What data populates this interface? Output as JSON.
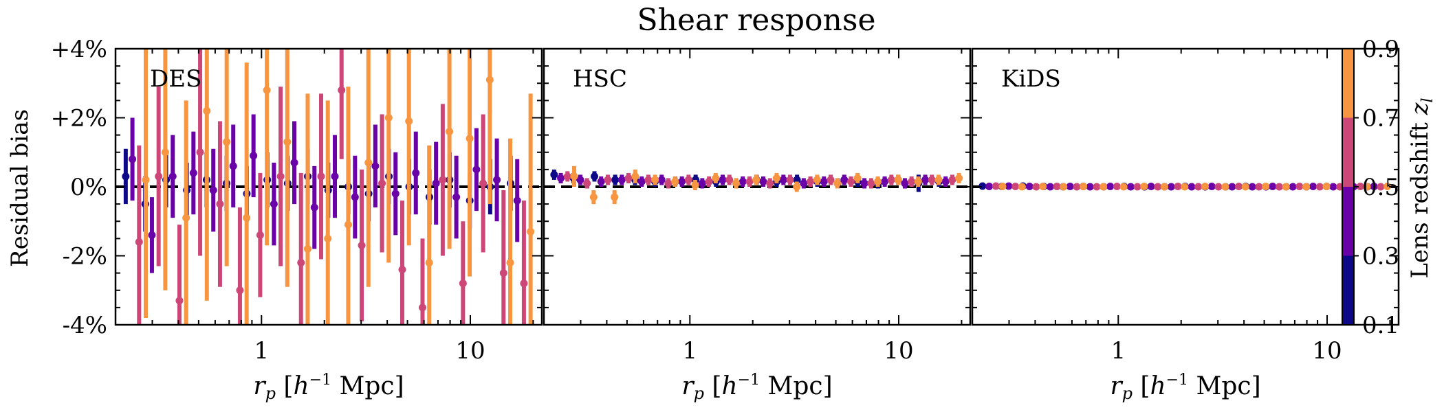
{
  "title": "Shear response",
  "ylabel": "Residual bias",
  "xlabel_var": "r",
  "xlabel_sub": "p",
  "xlabel_unit_open": " [",
  "xlabel_h": "h",
  "xlabel_exp": "−1",
  "xlabel_unit_close": " Mpc]",
  "colorbar": {
    "label_text": "Lens redshift ",
    "label_var": "z",
    "label_sub": "l",
    "bins": [
      {
        "lo": 0.1,
        "hi": 0.3,
        "color": "#0d0887"
      },
      {
        "lo": 0.3,
        "hi": 0.5,
        "color": "#6a00a8"
      },
      {
        "lo": 0.5,
        "hi": 0.7,
        "color": "#cc4778"
      },
      {
        "lo": 0.7,
        "hi": 0.9,
        "color": "#f89540"
      }
    ],
    "tick_labels": [
      "0.1",
      "0.3",
      "0.5",
      "0.7",
      "0.9"
    ]
  },
  "chart_data": [
    {
      "type": "scatter",
      "panel": "DES",
      "title": "Shear response",
      "xlabel": "r_p [h^-1 Mpc]",
      "ylabel": "Residual bias",
      "xscale": "log",
      "xlim": [
        0.2,
        22
      ],
      "ylim": [
        -4,
        4
      ],
      "x_ticks": [
        1,
        10
      ],
      "x_tick_labels": [
        "1",
        "10"
      ],
      "y_ticks": [
        4,
        2,
        0,
        -2,
        -4
      ],
      "y_tick_labels": [
        "+4%",
        "+2%",
        "0%",
        "-2%",
        "-4%"
      ],
      "reference_line": 0,
      "x": [
        0.25,
        0.31,
        0.39,
        0.49,
        0.61,
        0.76,
        0.95,
        1.19,
        1.49,
        1.86,
        2.33,
        2.91,
        3.64,
        4.55,
        5.69,
        7.11,
        8.89,
        11.1,
        13.9,
        17.4
      ],
      "series": [
        {
          "name": "0.1–0.3",
          "y": [
            0.3,
            -0.5,
            0.2,
            -0.1,
            0.2,
            0.1,
            -0.2,
            0.2,
            0.1,
            0.3,
            -0.1,
            0.0,
            -0.2,
            0.3,
            0.0,
            -0.3,
            0.2,
            -0.4,
            0.0,
            0.1
          ],
          "err": [
            0.8,
            0.8,
            0.8,
            0.8,
            0.8,
            0.8,
            0.8,
            0.8,
            0.8,
            0.8,
            0.8,
            0.8,
            0.8,
            0.8,
            0.8,
            0.8,
            0.8,
            0.8,
            0.8,
            0.8
          ]
        },
        {
          "name": "0.3–0.5",
          "y": [
            0.8,
            -1.4,
            0.3,
            0.4,
            -0.1,
            0.6,
            0.9,
            -0.5,
            0.7,
            -0.6,
            0.3,
            -0.3,
            0.6,
            -0.2,
            0.4,
            0.1,
            -0.3,
            0.5,
            0.2,
            -0.4
          ],
          "err": [
            1.2,
            1.1,
            1.2,
            1.2,
            1.2,
            1.2,
            1.2,
            1.2,
            1.2,
            1.2,
            1.2,
            1.2,
            1.2,
            1.2,
            1.2,
            1.2,
            1.2,
            1.2,
            1.2,
            1.2
          ]
        },
        {
          "name": "0.5–0.7",
          "y": [
            -1.6,
            0.3,
            -3.3,
            1.0,
            -0.5,
            -3.0,
            -1.4,
            0.3,
            -2.2,
            0.3,
            2.8,
            -1.7,
            0.1,
            -2.4,
            -3.5,
            0.2,
            -2.8,
            0.1,
            -2.5,
            -2.8
          ],
          "err": [
            2.8,
            2.6,
            2.2,
            3.0,
            2.4,
            2.4,
            1.8,
            2.6,
            2.6,
            2.4,
            2.0,
            2.2,
            2.0,
            2.0,
            2.0,
            2.2,
            1.8,
            2.0,
            2.4,
            2.4
          ]
        },
        {
          "name": "0.7–0.9",
          "y": [
            0.2,
            1.0,
            -0.9,
            2.2,
            1.3,
            -0.9,
            2.8,
            1.3,
            -1.8,
            -1.5,
            -1.1,
            0.7,
            2.0,
            1.9,
            -2.2,
            1.6,
            1.4,
            3.1,
            -2.2,
            -1.3
          ],
          "err": [
            4.0,
            4.0,
            3.4,
            5.5,
            3.6,
            4.5,
            4.5,
            4.2,
            4.5,
            4.0,
            4.0,
            3.6,
            4.2,
            3.6,
            3.4,
            3.4,
            4.0,
            3.6,
            3.6,
            4.0
          ]
        }
      ]
    },
    {
      "type": "scatter",
      "panel": "HSC",
      "xscale": "log",
      "xlim": [
        0.2,
        22
      ],
      "ylim": [
        -4,
        4
      ],
      "x_ticks": [
        1,
        10
      ],
      "x_tick_labels": [
        "1",
        "10"
      ],
      "reference_line": 0,
      "x": [
        0.25,
        0.31,
        0.39,
        0.49,
        0.61,
        0.76,
        0.95,
        1.19,
        1.49,
        1.86,
        2.33,
        2.91,
        3.64,
        4.55,
        5.69,
        7.11,
        8.89,
        11.1,
        13.9,
        17.4
      ],
      "series": [
        {
          "name": "0.1–0.3",
          "y": [
            0.35,
            0.25,
            0.3,
            0.2,
            0.2,
            0.15,
            0.15,
            0.2,
            0.15,
            0.1,
            0.2,
            0.15,
            0.2,
            0.15,
            0.1,
            0.15,
            0.1,
            0.2,
            0.1,
            0.15
          ],
          "err": [
            0.15,
            0.15,
            0.15,
            0.15,
            0.15,
            0.15,
            0.15,
            0.15,
            0.15,
            0.15,
            0.15,
            0.15,
            0.15,
            0.15,
            0.15,
            0.15,
            0.15,
            0.15,
            0.25,
            0.15
          ]
        },
        {
          "name": "0.3–0.5",
          "y": [
            0.25,
            0.2,
            0.15,
            0.2,
            0.15,
            0.2,
            0.15,
            0.1,
            0.2,
            0.15,
            0.15,
            0.2,
            0.1,
            0.15,
            0.2,
            0.1,
            0.15,
            0.1,
            0.2,
            0.15
          ],
          "err": [
            0.15,
            0.15,
            0.15,
            0.15,
            0.15,
            0.15,
            0.15,
            0.15,
            0.15,
            0.15,
            0.15,
            0.15,
            0.15,
            0.15,
            0.15,
            0.15,
            0.15,
            0.15,
            0.15,
            0.15
          ]
        },
        {
          "name": "0.5–0.7",
          "y": [
            0.3,
            0.1,
            0.2,
            0.25,
            0.2,
            0.1,
            0.2,
            0.15,
            0.2,
            0.15,
            0.1,
            0.2,
            0.15,
            0.2,
            0.15,
            0.1,
            0.2,
            0.15,
            0.2,
            0.2
          ],
          "err": [
            0.15,
            0.15,
            0.15,
            0.15,
            0.15,
            0.15,
            0.15,
            0.15,
            0.15,
            0.15,
            0.15,
            0.15,
            0.15,
            0.15,
            0.15,
            0.15,
            0.15,
            0.15,
            0.15,
            0.15
          ]
        },
        {
          "name": "0.7–0.9",
          "y": [
            0.3,
            -0.3,
            -0.3,
            0.3,
            0.2,
            0.15,
            0.05,
            0.25,
            0.1,
            0.2,
            0.25,
            0.0,
            0.2,
            0.1,
            0.25,
            0.15,
            0.2,
            0.15,
            0.2,
            0.25
          ],
          "err": [
            0.3,
            0.2,
            0.2,
            0.2,
            0.15,
            0.15,
            0.15,
            0.15,
            0.15,
            0.15,
            0.15,
            0.15,
            0.15,
            0.15,
            0.15,
            0.15,
            0.15,
            0.15,
            0.15,
            0.15
          ]
        }
      ]
    },
    {
      "type": "scatter",
      "panel": "KiDS",
      "xscale": "log",
      "xlim": [
        0.2,
        22
      ],
      "ylim": [
        -4,
        4
      ],
      "x_ticks": [
        1,
        10
      ],
      "x_tick_labels": [
        "1",
        "10"
      ],
      "reference_line": 0,
      "x": [
        0.25,
        0.31,
        0.39,
        0.49,
        0.61,
        0.76,
        0.95,
        1.19,
        1.49,
        1.86,
        2.33,
        2.91,
        3.64,
        4.55,
        5.69,
        7.11,
        8.89,
        11.1,
        13.9,
        17.4
      ],
      "series": [
        {
          "name": "0.1–0.3",
          "y": [
            0.02,
            0.01,
            0.02,
            0.01,
            0.0,
            0.01,
            0.0,
            0.01,
            0.0,
            0.0,
            0.01,
            0.0,
            0.0,
            0.01,
            0.0,
            0.0,
            0.0,
            0.01,
            0.0,
            0.0
          ],
          "err": [
            0.05,
            0.05,
            0.05,
            0.05,
            0.05,
            0.05,
            0.05,
            0.05,
            0.05,
            0.05,
            0.05,
            0.05,
            0.05,
            0.05,
            0.05,
            0.05,
            0.05,
            0.05,
            0.05,
            0.05
          ]
        },
        {
          "name": "0.3–0.5",
          "y": [
            0.01,
            0.02,
            0.01,
            0.0,
            0.01,
            0.0,
            0.01,
            0.0,
            0.01,
            0.0,
            0.0,
            0.01,
            0.0,
            0.0,
            0.01,
            0.0,
            0.01,
            0.0,
            0.0,
            0.01
          ],
          "err": [
            0.05,
            0.05,
            0.05,
            0.05,
            0.05,
            0.05,
            0.05,
            0.05,
            0.05,
            0.05,
            0.05,
            0.05,
            0.05,
            0.05,
            0.05,
            0.05,
            0.05,
            0.05,
            0.05,
            0.05
          ]
        },
        {
          "name": "0.5–0.7",
          "y": [
            0.02,
            0.01,
            0.0,
            0.01,
            0.0,
            0.0,
            0.01,
            0.0,
            0.0,
            0.01,
            0.0,
            0.0,
            0.01,
            0.0,
            0.0,
            0.01,
            0.0,
            0.0,
            0.01,
            0.0
          ],
          "err": [
            0.05,
            0.05,
            0.05,
            0.05,
            0.05,
            0.05,
            0.05,
            0.05,
            0.05,
            0.05,
            0.05,
            0.05,
            0.05,
            0.05,
            0.05,
            0.05,
            0.05,
            0.05,
            0.05,
            0.05
          ]
        },
        {
          "name": "0.7–0.9",
          "y": [
            0.01,
            0.0,
            0.01,
            0.0,
            0.01,
            0.0,
            0.0,
            0.01,
            0.0,
            0.0,
            0.01,
            0.0,
            0.0,
            0.01,
            0.0,
            0.0,
            0.01,
            0.0,
            0.0,
            0.01
          ],
          "err": [
            0.05,
            0.05,
            0.05,
            0.05,
            0.05,
            0.05,
            0.05,
            0.05,
            0.05,
            0.05,
            0.05,
            0.05,
            0.05,
            0.05,
            0.05,
            0.05,
            0.05,
            0.05,
            0.05,
            0.05
          ]
        }
      ]
    }
  ]
}
